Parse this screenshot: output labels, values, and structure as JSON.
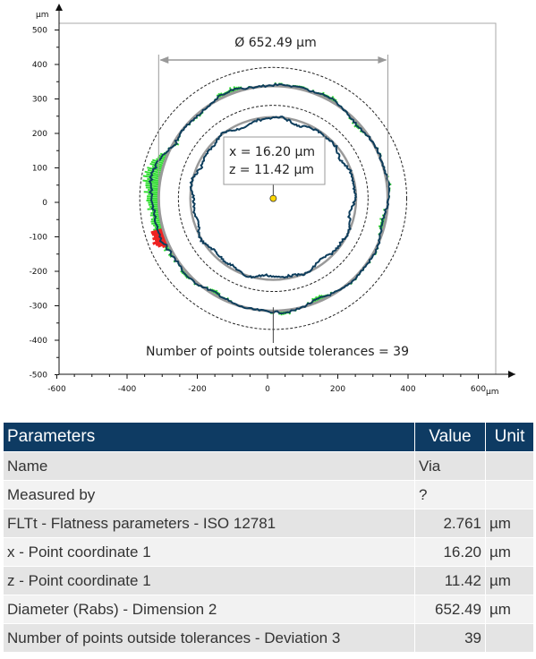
{
  "chart_data": {
    "type": "scatter",
    "x_unit": "µm",
    "y_unit": "µm",
    "xlim": [
      -620,
      660
    ],
    "ylim": [
      -510,
      510
    ],
    "x_ticks": [
      "-600",
      "-400",
      "-200",
      "0",
      "200",
      "400",
      "600"
    ],
    "y_ticks": [
      "500",
      "400",
      "300",
      "200",
      "100",
      "0",
      "-100",
      "-200",
      "-300",
      "-400",
      "-500"
    ],
    "center": {
      "x": 16.2,
      "z": 11.42
    },
    "outer_radius": 326.25,
    "inner_radius": 236,
    "tolerance_circles_radius": [
      270,
      380
    ],
    "diameter_label": "Ø 652.49 µm",
    "point_label_x": "x = 16.20 µm",
    "point_label_z": "z = 11.42 µm",
    "outside_label": "Number of points outside tolerances = 39",
    "colors": {
      "profile": "#0d3d5c",
      "within": "#33dd33",
      "outside": "#ee2222",
      "fit": "#999999",
      "marker": "#ffd700"
    }
  },
  "table": {
    "headers": [
      "Parameters",
      "Value",
      "Unit"
    ],
    "rows": [
      {
        "name": "Name",
        "value": "Via",
        "unit": ""
      },
      {
        "name": "Measured by",
        "value": "?",
        "unit": ""
      },
      {
        "name": "FLTt - Flatness parameters - ISO 12781",
        "value": "2.761",
        "unit": "µm"
      },
      {
        "name": "x - Point coordinate 1",
        "value": "16.20",
        "unit": "µm"
      },
      {
        "name": "z - Point coordinate 1",
        "value": "11.42",
        "unit": "µm"
      },
      {
        "name": "Diameter (Rabs) - Dimension 2",
        "value": "652.49",
        "unit": "µm"
      },
      {
        "name": "Number of points outside tolerances - Deviation 3",
        "value": "39",
        "unit": ""
      }
    ]
  }
}
